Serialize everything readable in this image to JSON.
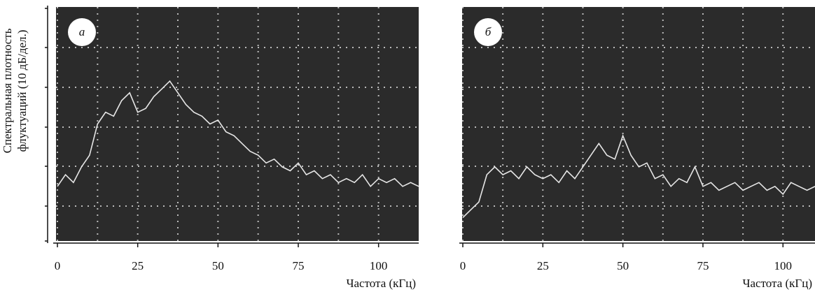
{
  "chart_data": [
    {
      "type": "line",
      "panel_label": "а",
      "ylabel": "Спектральная плотность флуктуаций (10 дБ/дел.)",
      "xlabel": "Частота (кГц)",
      "xlim": [
        0,
        112.5
      ],
      "xticks": [
        0,
        25,
        50,
        75,
        100
      ],
      "ylim": [
        0,
        60
      ],
      "series": [
        {
          "color": "#e6e6e6",
          "x": [
            0,
            2.5,
            5,
            7.5,
            10,
            12.5,
            15,
            17.5,
            20,
            22.5,
            25,
            27.5,
            30,
            32.5,
            35,
            37.5,
            40,
            42.5,
            45,
            47.5,
            50,
            52.5,
            55,
            57.5,
            60,
            62.5,
            65,
            67.5,
            70,
            72.5,
            75,
            77.5,
            80,
            82.5,
            85,
            87.5,
            90,
            92.5,
            95,
            97.5,
            100,
            102.5,
            105,
            107.5,
            110,
            112.5
          ],
          "values": [
            14,
            17,
            15,
            19,
            22,
            30,
            33,
            32,
            36,
            38,
            33,
            34,
            37,
            39,
            41,
            38,
            35,
            33,
            32,
            30,
            31,
            28,
            27,
            25,
            23,
            22,
            20,
            21,
            19,
            18,
            20,
            17,
            18,
            16,
            17,
            15,
            16,
            15,
            17,
            14,
            16,
            15,
            16,
            14,
            15,
            14
          ]
        }
      ]
    },
    {
      "type": "line",
      "panel_label": "б",
      "xlabel": "Частота (кГц)",
      "xlim": [
        0,
        110
      ],
      "xticks": [
        0,
        25,
        50,
        75,
        100
      ],
      "ylim": [
        0,
        60
      ],
      "series": [
        {
          "color": "#e6e6e6",
          "x": [
            0,
            2.5,
            5,
            7.5,
            10,
            12.5,
            15,
            17.5,
            20,
            22.5,
            25,
            27.5,
            30,
            32.5,
            35,
            37.5,
            40,
            42.5,
            45,
            47.5,
            50,
            52.5,
            55,
            57.5,
            60,
            62.5,
            65,
            67.5,
            70,
            72.5,
            75,
            77.5,
            80,
            82.5,
            85,
            87.5,
            90,
            92.5,
            95,
            97.5,
            100,
            102.5,
            105,
            107.5,
            110
          ],
          "values": [
            6,
            8,
            10,
            17,
            19,
            17,
            18,
            16,
            19,
            17,
            16,
            17,
            15,
            18,
            16,
            19,
            22,
            25,
            22,
            21,
            27,
            22,
            19,
            20,
            16,
            17,
            14,
            16,
            15,
            19,
            14,
            15,
            13,
            14,
            15,
            13,
            14,
            15,
            13,
            14,
            12,
            15,
            14,
            13,
            14
          ]
        }
      ]
    }
  ]
}
